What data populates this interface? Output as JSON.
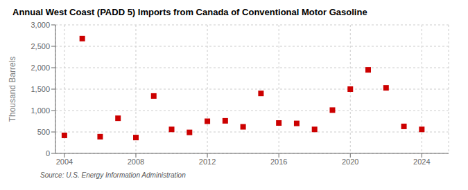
{
  "chart_data": {
    "type": "scatter",
    "title": "Annual West Coast (PADD 5) Imports from Canada of Conventional Motor Gasoline",
    "ylabel": "Thousand Barrels",
    "annotations": [
      "Source: U.S. Energy Information Administration"
    ],
    "x": [
      2004,
      2005,
      2006,
      2007,
      2008,
      2009,
      2010,
      2011,
      2012,
      2013,
      2014,
      2015,
      2016,
      2017,
      2018,
      2019,
      2020,
      2021,
      2022,
      2023,
      2024
    ],
    "values": [
      420,
      2680,
      390,
      820,
      370,
      1340,
      560,
      490,
      750,
      760,
      620,
      1400,
      710,
      700,
      560,
      1010,
      1500,
      1950,
      1530,
      630,
      560
    ],
    "color": "#cc0000",
    "marker": "square",
    "xlim": [
      2003.5,
      2025.5
    ],
    "xticks": [
      2004,
      2008,
      2012,
      2016,
      2020,
      2024
    ],
    "ylim": [
      0,
      3000
    ],
    "yticks": [
      0,
      500,
      {
        "value": 1000,
        "label": "1,000"
      },
      {
        "value": 1500,
        "label": "1,500"
      },
      {
        "value": 2000,
        "label": "2,000"
      },
      {
        "value": 2500,
        "label": "2,500"
      },
      {
        "value": 3000,
        "label": "3,000"
      }
    ],
    "grid": true
  }
}
